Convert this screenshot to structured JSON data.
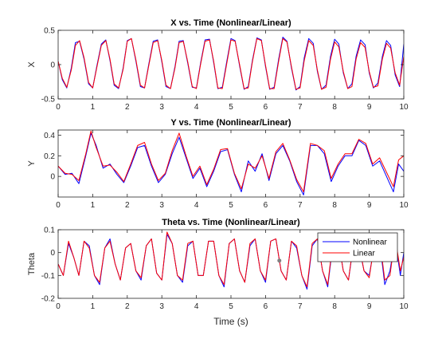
{
  "figure": {
    "xlabel": "Time (s)"
  },
  "chart_data": [
    {
      "type": "line",
      "title": "X vs. Time (Nonlinear/Linear)",
      "xlabel": "",
      "ylabel": "X",
      "xlim": [
        0,
        10
      ],
      "ylim": [
        -0.5,
        0.5
      ],
      "xticks": [
        0,
        1,
        2,
        3,
        4,
        5,
        6,
        7,
        8,
        9,
        10
      ],
      "yticks": [
        -0.5,
        0,
        0.5
      ],
      "ytick_labels": [
        "-0.5",
        "0",
        "0.5"
      ],
      "grid": false,
      "series": [
        {
          "color": "#0000ff",
          "x": [
            0,
            0.12,
            0.25,
            0.38,
            0.5,
            0.62,
            0.75,
            0.88,
            1.0,
            1.12,
            1.25,
            1.38,
            1.5,
            1.62,
            1.75,
            1.88,
            2.0,
            2.12,
            2.25,
            2.38,
            2.5,
            2.62,
            2.75,
            2.88,
            3.0,
            3.12,
            3.25,
            3.38,
            3.5,
            3.62,
            3.75,
            3.88,
            4.0,
            4.12,
            4.25,
            4.38,
            4.5,
            4.62,
            4.75,
            4.88,
            5.0,
            5.12,
            5.25,
            5.38,
            5.5,
            5.62,
            5.75,
            5.88,
            6.0,
            6.12,
            6.25,
            6.38,
            6.5,
            6.62,
            6.75,
            6.88,
            7.0,
            7.12,
            7.25,
            7.38,
            7.5,
            7.62,
            7.75,
            7.88,
            8.0,
            8.12,
            8.25,
            8.38,
            8.5,
            8.62,
            8.75,
            8.88,
            9.0,
            9.12,
            9.25,
            9.38,
            9.5,
            9.62,
            9.75,
            9.88,
            10.0
          ],
          "values": [
            0.05,
            -0.22,
            -0.34,
            -0.05,
            0.32,
            0.34,
            0.08,
            -0.28,
            -0.34,
            -0.02,
            0.3,
            0.36,
            0.06,
            -0.3,
            -0.35,
            -0.05,
            0.35,
            0.38,
            0.05,
            -0.32,
            -0.34,
            0.0,
            0.34,
            0.36,
            0.04,
            -0.32,
            -0.35,
            -0.03,
            0.34,
            0.35,
            0.02,
            -0.33,
            -0.34,
            0.02,
            0.36,
            0.37,
            0.03,
            -0.35,
            -0.33,
            0.05,
            0.38,
            0.35,
            -0.02,
            -0.36,
            -0.32,
            0.06,
            0.39,
            0.36,
            -0.03,
            -0.36,
            -0.33,
            0.08,
            0.4,
            0.34,
            -0.05,
            -0.37,
            -0.32,
            0.1,
            0.38,
            0.31,
            -0.1,
            -0.36,
            -0.3,
            0.12,
            0.37,
            0.3,
            -0.12,
            -0.35,
            -0.28,
            0.12,
            0.36,
            0.29,
            -0.12,
            -0.34,
            -0.27,
            0.12,
            0.35,
            0.28,
            -0.15,
            -0.32,
            0.3
          ]
        },
        {
          "color": "#ff0000",
          "x": [
            0,
            0.12,
            0.25,
            0.38,
            0.5,
            0.62,
            0.75,
            0.88,
            1.0,
            1.12,
            1.25,
            1.38,
            1.5,
            1.62,
            1.75,
            1.88,
            2.0,
            2.12,
            2.25,
            2.38,
            2.5,
            2.62,
            2.75,
            2.88,
            3.0,
            3.12,
            3.25,
            3.38,
            3.5,
            3.62,
            3.75,
            3.88,
            4.0,
            4.12,
            4.25,
            4.38,
            4.5,
            4.62,
            4.75,
            4.88,
            5.0,
            5.12,
            5.25,
            5.38,
            5.5,
            5.62,
            5.75,
            5.88,
            6.0,
            6.12,
            6.25,
            6.38,
            6.5,
            6.62,
            6.75,
            6.88,
            7.0,
            7.12,
            7.25,
            7.38,
            7.5,
            7.62,
            7.75,
            7.88,
            8.0,
            8.12,
            8.25,
            8.38,
            8.5,
            8.62,
            8.75,
            8.88,
            9.0,
            9.12,
            9.25,
            9.38,
            9.5,
            9.62,
            9.75,
            9.88,
            10.0
          ],
          "values": [
            0.05,
            -0.2,
            -0.33,
            -0.08,
            0.28,
            0.35,
            0.1,
            -0.26,
            -0.34,
            -0.04,
            0.28,
            0.35,
            0.08,
            -0.28,
            -0.34,
            -0.07,
            0.34,
            0.38,
            0.07,
            -0.3,
            -0.34,
            -0.02,
            0.32,
            0.35,
            0.06,
            -0.3,
            -0.35,
            -0.05,
            0.32,
            0.34,
            0.04,
            -0.32,
            -0.35,
            0.0,
            0.34,
            0.36,
            0.05,
            -0.34,
            -0.35,
            0.02,
            0.36,
            0.34,
            0.0,
            -0.35,
            -0.34,
            0.04,
            0.38,
            0.35,
            -0.01,
            -0.35,
            -0.35,
            0.05,
            0.38,
            0.33,
            -0.03,
            -0.36,
            -0.34,
            0.06,
            0.35,
            0.28,
            -0.08,
            -0.36,
            -0.33,
            0.08,
            0.33,
            0.26,
            -0.1,
            -0.35,
            -0.32,
            0.08,
            0.32,
            0.25,
            -0.1,
            -0.33,
            -0.31,
            0.08,
            0.31,
            0.24,
            -0.12,
            -0.3,
            0.12
          ]
        }
      ]
    },
    {
      "type": "line",
      "title": "Y vs. Time (Nonlinear/Linear)",
      "xlabel": "",
      "ylabel": "Y",
      "xlim": [
        0,
        10
      ],
      "ylim": [
        -0.2,
        0.45
      ],
      "xticks": [
        0,
        1,
        2,
        3,
        4,
        5,
        6,
        7,
        8,
        9,
        10
      ],
      "yticks": [
        0,
        0.2,
        0.4
      ],
      "ytick_labels": [
        "0",
        "0.2",
        "0.4"
      ],
      "grid": false,
      "series": [
        {
          "color": "#0000ff",
          "x": [
            0,
            0.2,
            0.4,
            0.6,
            0.8,
            0.95,
            1.1,
            1.3,
            1.5,
            1.7,
            1.9,
            2.1,
            2.3,
            2.5,
            2.7,
            2.9,
            3.1,
            3.3,
            3.5,
            3.7,
            3.9,
            4.1,
            4.3,
            4.5,
            4.7,
            4.9,
            5.1,
            5.3,
            5.5,
            5.7,
            5.9,
            6.1,
            6.3,
            6.5,
            6.7,
            6.9,
            7.1,
            7.3,
            7.5,
            7.7,
            7.9,
            8.1,
            8.3,
            8.5,
            8.7,
            8.9,
            9.1,
            9.3,
            9.5,
            9.7,
            9.85,
            10.0
          ],
          "values": [
            0.1,
            0.02,
            0.03,
            -0.07,
            0.2,
            0.42,
            0.3,
            0.08,
            0.12,
            0.02,
            -0.06,
            0.1,
            0.28,
            0.3,
            0.1,
            -0.06,
            0.02,
            0.22,
            0.38,
            0.18,
            -0.02,
            0.08,
            -0.1,
            0.05,
            0.24,
            0.26,
            0.02,
            -0.15,
            0.15,
            0.05,
            0.22,
            -0.04,
            0.22,
            0.3,
            0.15,
            -0.05,
            -0.18,
            0.3,
            0.3,
            0.22,
            -0.05,
            0.1,
            0.2,
            0.2,
            0.35,
            0.3,
            0.1,
            0.15,
            0.0,
            -0.15,
            0.12,
            0.05
          ]
        },
        {
          "color": "#ff0000",
          "x": [
            0,
            0.2,
            0.4,
            0.6,
            0.8,
            0.95,
            1.1,
            1.3,
            1.5,
            1.7,
            1.9,
            2.1,
            2.3,
            2.5,
            2.7,
            2.9,
            3.1,
            3.3,
            3.5,
            3.7,
            3.9,
            4.1,
            4.3,
            4.5,
            4.7,
            4.9,
            5.1,
            5.3,
            5.5,
            5.7,
            5.9,
            6.1,
            6.3,
            6.5,
            6.7,
            6.9,
            7.1,
            7.3,
            7.5,
            7.7,
            7.9,
            8.1,
            8.3,
            8.5,
            8.7,
            8.9,
            9.1,
            9.3,
            9.5,
            9.7,
            9.85,
            10.0
          ],
          "values": [
            0.1,
            0.03,
            0.02,
            -0.04,
            0.22,
            0.44,
            0.28,
            0.1,
            0.11,
            0.04,
            -0.05,
            0.12,
            0.3,
            0.33,
            0.12,
            -0.04,
            0.03,
            0.25,
            0.42,
            0.2,
            0.0,
            0.1,
            -0.08,
            0.07,
            0.26,
            0.27,
            0.03,
            -0.12,
            0.12,
            0.08,
            0.2,
            -0.02,
            0.24,
            0.32,
            0.16,
            -0.03,
            -0.15,
            0.32,
            0.3,
            0.25,
            -0.02,
            0.12,
            0.22,
            0.22,
            0.36,
            0.32,
            0.12,
            0.18,
            0.04,
            -0.1,
            0.16,
            0.2
          ]
        }
      ]
    },
    {
      "type": "line",
      "title": "Theta vs. Time (Nonlinear/Linear)",
      "xlabel": "Time (s)",
      "ylabel": "Theta",
      "xlim": [
        0,
        10
      ],
      "ylim": [
        -0.2,
        0.1
      ],
      "xticks": [
        0,
        1,
        2,
        3,
        4,
        5,
        6,
        7,
        8,
        9,
        10
      ],
      "yticks": [
        -0.2,
        -0.1,
        0,
        0.1
      ],
      "ytick_labels": [
        "-0.2",
        "-0.1",
        "0",
        "0.1"
      ],
      "grid": false,
      "legend": {
        "position": "top-right",
        "entries": [
          "Nonlinear",
          "Linear"
        ]
      },
      "annotation_point": {
        "x": 6.4,
        "y": -0.035
      },
      "series": [
        {
          "name": "Nonlinear",
          "color": "#0000ff",
          "x": [
            0,
            0.15,
            0.3,
            0.45,
            0.6,
            0.75,
            0.9,
            1.05,
            1.2,
            1.35,
            1.5,
            1.65,
            1.8,
            1.95,
            2.1,
            2.25,
            2.4,
            2.55,
            2.7,
            2.85,
            3.0,
            3.15,
            3.3,
            3.45,
            3.6,
            3.75,
            3.9,
            4.05,
            4.2,
            4.35,
            4.5,
            4.65,
            4.8,
            4.95,
            5.1,
            5.25,
            5.4,
            5.55,
            5.7,
            5.85,
            6.0,
            6.15,
            6.3,
            6.45,
            6.6,
            6.75,
            6.9,
            7.05,
            7.2,
            7.35,
            7.5,
            7.65,
            7.8,
            7.95,
            8.1,
            8.25,
            8.4,
            8.55,
            8.7,
            8.85,
            9.0,
            9.15,
            9.3,
            9.45,
            9.6,
            9.75,
            9.9,
            10.0
          ],
          "values": [
            -0.05,
            -0.1,
            0.04,
            -0.02,
            -0.1,
            0.05,
            0.03,
            -0.1,
            -0.14,
            0.02,
            0.06,
            -0.05,
            -0.12,
            0.02,
            0.04,
            -0.08,
            -0.12,
            0.03,
            0.06,
            -0.09,
            -0.12,
            0.08,
            0.04,
            -0.1,
            -0.13,
            0.03,
            0.05,
            -0.1,
            -0.1,
            0.05,
            0.05,
            -0.1,
            -0.15,
            0.04,
            0.06,
            -0.08,
            -0.13,
            0.03,
            0.06,
            -0.08,
            -0.13,
            0.05,
            0.06,
            -0.08,
            -0.12,
            0.05,
            0.02,
            -0.1,
            -0.16,
            0.03,
            0.06,
            -0.08,
            -0.15,
            0.04,
            0.06,
            -0.08,
            -0.12,
            0.04,
            0.03,
            -0.08,
            -0.1,
            0.03,
            0.05,
            -0.14,
            -0.08,
            0.06,
            -0.1,
            0.0
          ]
        },
        {
          "name": "Linear",
          "color": "#ff0000",
          "x": [
            0,
            0.15,
            0.3,
            0.45,
            0.6,
            0.75,
            0.9,
            1.05,
            1.2,
            1.35,
            1.5,
            1.65,
            1.8,
            1.95,
            2.1,
            2.25,
            2.4,
            2.55,
            2.7,
            2.85,
            3.0,
            3.15,
            3.3,
            3.45,
            3.6,
            3.75,
            3.9,
            4.05,
            4.2,
            4.35,
            4.5,
            4.65,
            4.8,
            4.95,
            5.1,
            5.25,
            5.4,
            5.55,
            5.7,
            5.85,
            6.0,
            6.15,
            6.3,
            6.45,
            6.6,
            6.75,
            6.9,
            7.05,
            7.2,
            7.35,
            7.5,
            7.65,
            7.8,
            7.95,
            8.1,
            8.25,
            8.4,
            8.55,
            8.7,
            8.85,
            9.0,
            9.15,
            9.3,
            9.45,
            9.6,
            9.75,
            9.9,
            10.0
          ],
          "values": [
            -0.05,
            -0.1,
            0.05,
            -0.02,
            -0.1,
            0.05,
            0.02,
            -0.1,
            -0.13,
            0.02,
            0.05,
            -0.05,
            -0.12,
            0.02,
            0.04,
            -0.08,
            -0.11,
            0.03,
            0.06,
            -0.09,
            -0.12,
            0.09,
            0.04,
            -0.1,
            -0.12,
            0.04,
            0.05,
            -0.1,
            -0.1,
            0.05,
            0.05,
            -0.1,
            -0.14,
            0.04,
            0.06,
            -0.08,
            -0.13,
            0.04,
            0.06,
            -0.08,
            -0.12,
            0.05,
            0.06,
            -0.08,
            -0.12,
            0.05,
            0.03,
            -0.1,
            -0.15,
            0.04,
            0.06,
            -0.08,
            -0.14,
            0.05,
            0.06,
            -0.08,
            -0.12,
            0.05,
            0.04,
            -0.08,
            -0.11,
            0.04,
            0.06,
            -0.12,
            -0.1,
            0.07,
            -0.08,
            -0.02
          ]
        }
      ]
    }
  ]
}
